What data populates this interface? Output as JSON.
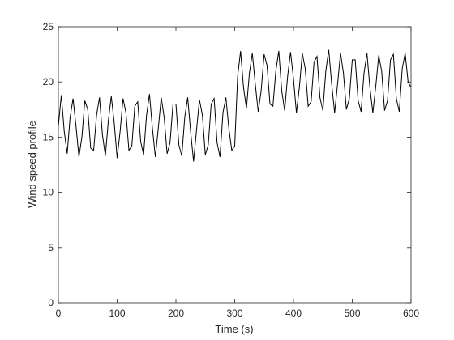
{
  "chart_data": {
    "type": "line",
    "xlabel": "Time (s)",
    "ylabel": "Wind speed profile",
    "x": [
      0,
      5,
      10,
      15,
      20,
      25,
      30,
      35,
      40,
      45,
      50,
      55,
      60,
      65,
      70,
      75,
      80,
      85,
      90,
      95,
      100,
      105,
      110,
      115,
      120,
      125,
      130,
      135,
      140,
      145,
      150,
      155,
      160,
      165,
      170,
      175,
      180,
      185,
      190,
      195,
      200,
      205,
      210,
      215,
      220,
      225,
      230,
      235,
      240,
      245,
      250,
      255,
      260,
      265,
      270,
      275,
      280,
      285,
      290,
      295,
      300,
      305,
      310,
      315,
      320,
      325,
      330,
      335,
      340,
      345,
      350,
      355,
      360,
      365,
      370,
      375,
      380,
      385,
      390,
      395,
      400,
      405,
      410,
      415,
      420,
      425,
      430,
      435,
      440,
      445,
      450,
      455,
      460,
      465,
      470,
      475,
      480,
      485,
      490,
      495,
      500,
      505,
      510,
      515,
      520,
      525,
      530,
      535,
      540,
      545,
      550,
      555,
      560,
      565,
      570,
      575,
      580,
      585,
      590,
      595,
      600
    ],
    "series": [
      {
        "name": "Wind speed",
        "color": "#000000",
        "values": [
          16,
          18.8,
          15.5,
          13.5,
          16.8,
          18.5,
          16,
          13.2,
          15,
          18.3,
          17.5,
          14,
          13.8,
          17,
          18.6,
          15.2,
          13.3,
          16.5,
          18.7,
          16.3,
          13.1,
          15.5,
          18.5,
          17.2,
          13.8,
          14.2,
          17.8,
          18.2,
          14.6,
          13.4,
          17,
          18.9,
          15.8,
          13.2,
          15.8,
          18.6,
          16.8,
          13.5,
          14.5,
          18,
          18,
          14.3,
          13.3,
          16.8,
          18.6,
          15.5,
          12.8,
          15.6,
          18.4,
          17,
          13.4,
          14.3,
          18,
          18.5,
          14.5,
          13.2,
          17.2,
          18.6,
          15.8,
          13.8,
          14.2,
          20.5,
          22.8,
          19.5,
          17.6,
          20.8,
          22.6,
          19.8,
          17.3,
          19.2,
          22.5,
          21.5,
          18,
          17.8,
          21,
          22.8,
          19.2,
          17.4,
          20.5,
          22.7,
          20.3,
          17.2,
          19.5,
          22.6,
          21.2,
          17.8,
          18.2,
          21.8,
          22.3,
          18.6,
          17.4,
          21,
          22.9,
          19.8,
          17.2,
          19.8,
          22.6,
          20.8,
          17.5,
          18.5,
          22,
          22,
          18.3,
          17.3,
          20.8,
          22.6,
          19.5,
          17.2,
          19.6,
          22.4,
          21,
          17.4,
          18.3,
          22,
          22.5,
          18.5,
          17.3,
          21.2,
          22.6,
          20,
          19.5
        ]
      }
    ],
    "xlim": [
      0,
      600
    ],
    "xticks": [
      0,
      100,
      200,
      300,
      400,
      500,
      600
    ],
    "ylim": [
      0,
      25
    ],
    "yticks": [
      0,
      5,
      10,
      15,
      20,
      25
    ]
  }
}
